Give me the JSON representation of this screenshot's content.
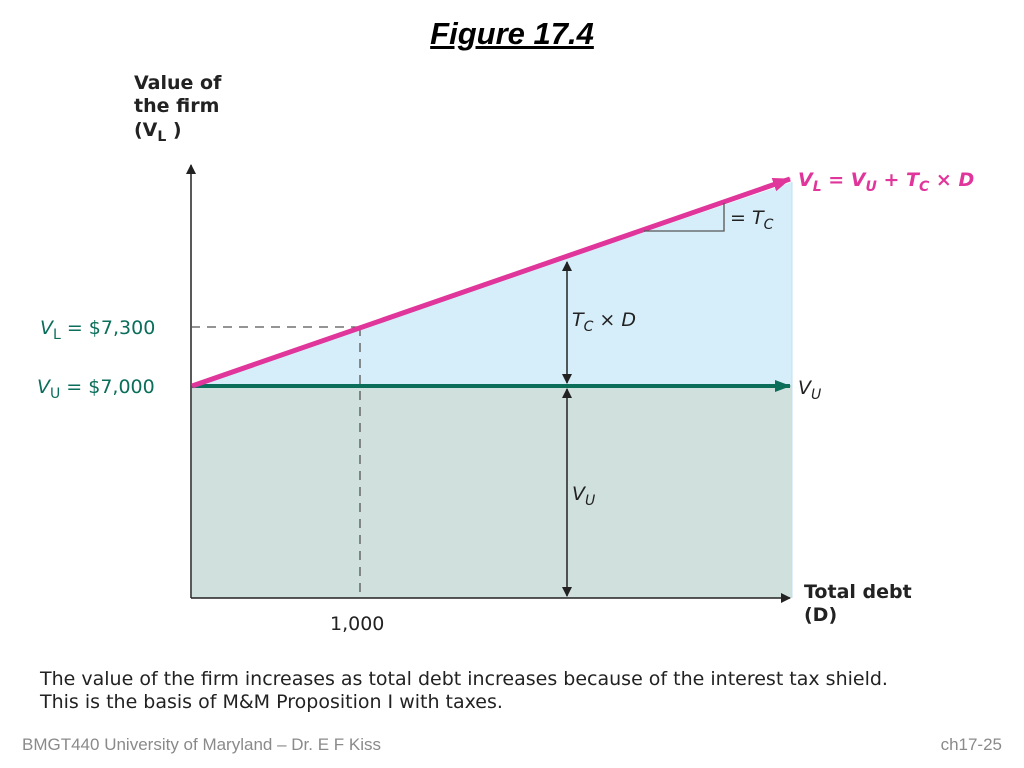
{
  "title": "Figure 17.4",
  "y_axis": {
    "line1": "Value of",
    "line2": "the firm",
    "line3_open": "(V",
    "line3_sub": "L",
    "line3_close": " )"
  },
  "x_axis": {
    "line1": "Total debt",
    "line2": "(D)"
  },
  "left_labels": {
    "vl": {
      "sym": "V",
      "sub": "L",
      "text": " = $7,300"
    },
    "vu": {
      "sym": "V",
      "sub": "U",
      "text": " =  $7,000"
    }
  },
  "x_tick": "1,000",
  "line_labels": {
    "vl_line": {
      "v1": "V",
      "s1": "L",
      "eq": " = ",
      "v2": "V",
      "s2": "U",
      "plus": " + ",
      "t": "T",
      "s3": "C",
      "times": " × D"
    },
    "vu_line": {
      "v": "V",
      "s": "U"
    },
    "slope": {
      "eq": "= T",
      "s": "C"
    },
    "tax_shield": {
      "t": "T",
      "s": "C",
      "rest": " × D"
    },
    "vu_area": {
      "v": "V",
      "s": "U"
    }
  },
  "colors": {
    "pink": "#e0359a",
    "green": "#0b6e5b",
    "light_blue": "#d6eefa",
    "gray_green": "#cfe0dd"
  },
  "caption": {
    "line1": "The value of the firm increases as total debt increases because of the interest tax shield.",
    "line2": "This is the basis of M&M Proposition I with taxes."
  },
  "footer": {
    "left": "BMGT440 University of Maryland – Dr. E F Kiss",
    "right": "ch17-25"
  }
}
